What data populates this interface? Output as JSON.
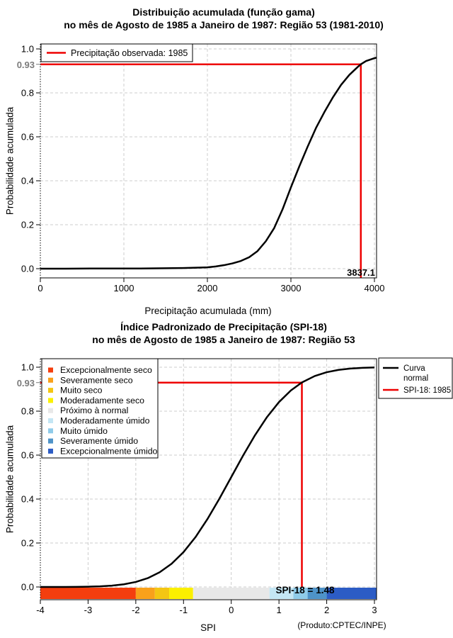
{
  "figure": {
    "background": "#ffffff",
    "accent_red": "#ee0000",
    "grid_color": "#cccccc",
    "special_tick_color": "#7b7b7b"
  },
  "chart_data": [
    {
      "type": "line",
      "title": "Distribuição acumulada (função gama)",
      "subtitle": "no mês de Agosto de 1985 a Janeiro de 1987: Região 53 (1981-2010)",
      "xlabel": "Precipitação acumulada (mm)",
      "ylabel": "Probabilidade acumulada",
      "xlim": [
        0,
        4050
      ],
      "ylim": [
        0,
        1.04
      ],
      "xticks": [
        0,
        1000,
        2000,
        3000,
        4000
      ],
      "yticks": [
        0.0,
        0.2,
        0.4,
        0.6,
        0.8,
        1.0
      ],
      "special_ytick": {
        "value": 0.93,
        "label": "0.93"
      },
      "grid": true,
      "legend_position": "top-left",
      "legend": [
        {
          "label": "Precipitação observada: 1985",
          "color": "#ee0000"
        }
      ],
      "series": [
        {
          "name": "Distribuição gama acumulada",
          "color": "#000000",
          "x": [
            0,
            300,
            600,
            900,
            1200,
            1500,
            1700,
            1900,
            2000,
            2100,
            2200,
            2300,
            2400,
            2500,
            2600,
            2700,
            2800,
            2900,
            3000,
            3100,
            3200,
            3300,
            3400,
            3500,
            3600,
            3700,
            3800,
            3837,
            3900,
            4000,
            4060
          ],
          "y": [
            0.0,
            0.0,
            0.001,
            0.001,
            0.001,
            0.002,
            0.003,
            0.005,
            0.006,
            0.01,
            0.016,
            0.024,
            0.035,
            0.052,
            0.08,
            0.125,
            0.185,
            0.27,
            0.37,
            0.465,
            0.555,
            0.64,
            0.712,
            0.778,
            0.836,
            0.882,
            0.918,
            0.93,
            0.945,
            0.958,
            0.963
          ],
          "linewidth": 2.5
        }
      ],
      "marker": {
        "x": 3837.1,
        "y": 0.93,
        "label": "3837.1",
        "color": "#ee0000"
      }
    },
    {
      "type": "line",
      "title": "Índice Padronizado de Precipitação (SPI-18)",
      "subtitle": "no mês de Agosto de 1985 a Janeiro de 1987: Região 53",
      "xlabel": "SPI",
      "ylabel": "Probabilidade acumulada",
      "annotation": "(Produto:CPTEC/INPE)",
      "xlim": [
        -4,
        3
      ],
      "ylim": [
        0,
        1.04
      ],
      "xticks": [
        -4,
        -3,
        -2,
        -1,
        0,
        1,
        2,
        3
      ],
      "yticks": [
        0.0,
        0.2,
        0.4,
        0.6,
        0.8,
        1.0
      ],
      "special_ytick": {
        "value": 0.93,
        "label": "0.93"
      },
      "grid": true,
      "legend_position": "top-right",
      "legend": [
        {
          "lines": [
            "Curva",
            "normal"
          ],
          "color": "#000000"
        },
        {
          "lines": [
            "SPI-18: 1985"
          ],
          "color": "#ee0000"
        }
      ],
      "categories_legend": [
        {
          "label": "Excepcionalmente seco",
          "color": "#f43e0e"
        },
        {
          "label": "Severamente seco",
          "color": "#f9a11b"
        },
        {
          "label": "Muito seco",
          "color": "#f4c613"
        },
        {
          "label": "Moderadamente seco",
          "color": "#fbf000"
        },
        {
          "label": "Próximo à normal",
          "color": "#e8e8e8"
        },
        {
          "label": "Moderadamente úmido",
          "color": "#c4e6f4"
        },
        {
          "label": "Muito úmido",
          "color": "#8fcbe9"
        },
        {
          "label": "Severamente úmido",
          "color": "#4e93c8"
        },
        {
          "label": "Excepcionalmente úmido",
          "color": "#2c5cc5"
        }
      ],
      "colorbar": {
        "boundaries": [
          -4,
          -2,
          -1.6,
          -1.3,
          -0.8,
          0.8,
          1.3,
          1.6,
          2,
          3
        ],
        "colors": [
          "#f43e0e",
          "#f9a11b",
          "#f4c613",
          "#fbf000",
          "#e8e8e8",
          "#c4e6f4",
          "#8fcbe9",
          "#4e93c8",
          "#2c5cc5"
        ]
      },
      "series": [
        {
          "name": "Curva normal",
          "color": "#000000",
          "x": [
            -4,
            -3.75,
            -3.5,
            -3.25,
            -3,
            -2.75,
            -2.5,
            -2.25,
            -2,
            -1.75,
            -1.5,
            -1.25,
            -1,
            -0.75,
            -0.5,
            -0.25,
            0,
            0.25,
            0.5,
            0.75,
            1,
            1.25,
            1.48,
            1.75,
            2,
            2.25,
            2.5,
            2.75,
            3
          ],
          "y": [
            0.0,
            0.0001,
            0.0002,
            0.0006,
            0.0013,
            0.003,
            0.0062,
            0.0122,
            0.0228,
            0.0401,
            0.0668,
            0.1056,
            0.1587,
            0.2266,
            0.3085,
            0.4013,
            0.5,
            0.5987,
            0.6915,
            0.7734,
            0.8413,
            0.8944,
            0.9306,
            0.9599,
            0.9772,
            0.9878,
            0.9938,
            0.997,
            0.9987
          ],
          "linewidth": 2.5
        }
      ],
      "marker": {
        "x": 1.48,
        "y": 0.93,
        "label": "SPI-18 = 1.48",
        "color": "#ee0000"
      }
    }
  ]
}
